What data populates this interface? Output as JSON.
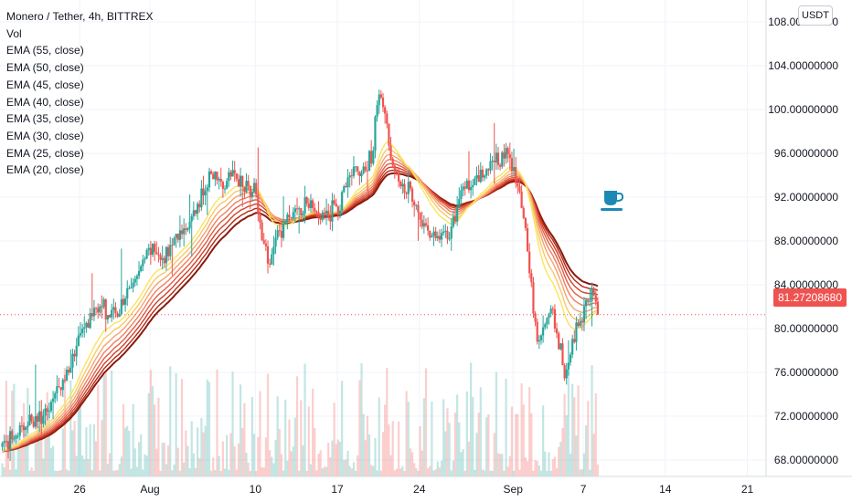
{
  "legend": {
    "title": "Monero / Tether, 4h, BITTREX",
    "vol": "Vol",
    "ema": [
      "EMA (55, close)",
      "EMA (50, close)",
      "EMA (45, close)",
      "EMA (40, close)",
      "EMA (35, close)",
      "EMA (30, close)",
      "EMA (25, close)",
      "EMA (20, close)"
    ]
  },
  "currency_label": "USDT",
  "last_price_label": "81.27208680",
  "colors": {
    "up": "#26a69a",
    "down": "#ef5350",
    "ema": [
      "#8b1a0e",
      "#b22a15",
      "#d2402a",
      "#e25e45",
      "#ef8060",
      "#f5a46d",
      "#f9c86a",
      "#fde35a"
    ],
    "cup": "#1e88b5"
  },
  "icons": [
    "coffee-cup-icon"
  ],
  "chart_data": {
    "type": "candlestick",
    "y_ticks": [
      "108.00000000",
      "104.00000000",
      "100.00000000",
      "96.00000000",
      "92.00000000",
      "88.00000000",
      "84.00000000",
      "80.00000000",
      "76.00000000",
      "72.00000000",
      "68.00000000"
    ],
    "y_range": [
      66.5,
      110
    ],
    "x_ticks": [
      {
        "label": "26",
        "day": 26
      },
      {
        "label": "Aug",
        "day": 32
      },
      {
        "label": "10",
        "day": 41
      },
      {
        "label": "17",
        "day": 48
      },
      {
        "label": "24",
        "day": 55
      },
      {
        "label": "Sep",
        "day": 63
      },
      {
        "label": "7",
        "day": 69
      },
      {
        "label": "14",
        "day": 76
      },
      {
        "label": "21",
        "day": 83
      }
    ],
    "x_range": [
      19.2,
      84.6
    ],
    "last_price": 81.27,
    "price_path": [
      [
        19.5,
        69.2
      ],
      [
        21,
        70.8
      ],
      [
        22,
        71.5
      ],
      [
        23,
        72.5
      ],
      [
        24,
        74
      ],
      [
        25,
        76
      ],
      [
        26,
        79
      ],
      [
        27,
        81.5
      ],
      [
        28,
        82
      ],
      [
        29,
        81
      ],
      [
        30,
        83
      ],
      [
        31,
        85
      ],
      [
        32,
        87.5
      ],
      [
        33,
        86
      ],
      [
        34,
        88
      ],
      [
        35,
        89
      ],
      [
        36,
        91
      ],
      [
        37,
        94
      ],
      [
        38,
        93.5
      ],
      [
        39,
        94
      ],
      [
        40,
        93
      ],
      [
        41,
        93
      ],
      [
        41.6,
        88
      ],
      [
        42.3,
        86
      ],
      [
        43,
        89
      ],
      [
        44,
        90
      ],
      [
        45,
        91
      ],
      [
        46,
        91
      ],
      [
        47,
        90.5
      ],
      [
        48,
        91
      ],
      [
        49,
        93.5
      ],
      [
        50,
        94.5
      ],
      [
        51,
        96
      ],
      [
        51.5,
        101
      ],
      [
        52,
        99.5
      ],
      [
        52.8,
        95
      ],
      [
        53.5,
        93
      ],
      [
        54.5,
        92
      ],
      [
        55.5,
        89
      ],
      [
        56.5,
        88
      ],
      [
        57.5,
        88.5
      ],
      [
        58.5,
        92
      ],
      [
        59.5,
        93.5
      ],
      [
        60.5,
        94
      ],
      [
        61.5,
        95.5
      ],
      [
        62.5,
        96
      ],
      [
        63,
        95
      ],
      [
        63.7,
        91
      ],
      [
        64.2,
        88
      ],
      [
        64.7,
        82
      ],
      [
        65.2,
        78
      ],
      [
        65.8,
        81
      ],
      [
        66.3,
        82.5
      ],
      [
        66.8,
        79
      ],
      [
        67.4,
        76
      ],
      [
        68,
        78.5
      ],
      [
        68.6,
        80.5
      ],
      [
        69.2,
        82
      ],
      [
        69.8,
        83.5
      ],
      [
        70.3,
        81.3
      ]
    ]
  }
}
